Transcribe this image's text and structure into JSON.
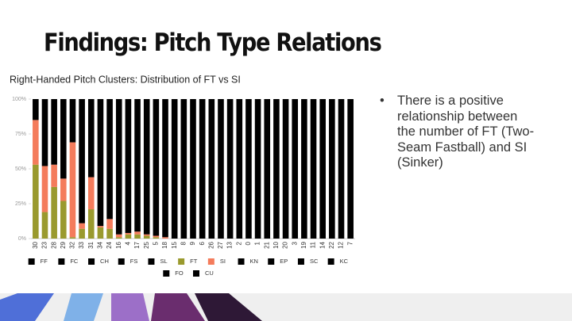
{
  "header": {
    "title": "Findings: Pitch Type Relations"
  },
  "bullets": [
    "There is a positive relationship between the number of FT (Two-Seam Fastball) and SI (Sinker)"
  ],
  "chart_data": {
    "type": "stacked-bar",
    "title": "Right-Handed Pitch Clusters: Distribution of FT vs SI",
    "categories": [
      "30",
      "23",
      "28",
      "29",
      "32",
      "33",
      "31",
      "34",
      "24",
      "16",
      "4",
      "17",
      "25",
      "5",
      "18",
      "15",
      "8",
      "9",
      "6",
      "26",
      "27",
      "13",
      "2",
      "0",
      "1",
      "21",
      "10",
      "20",
      "3",
      "19",
      "11",
      "14",
      "22",
      "12",
      "7"
    ],
    "ylim": [
      0,
      100
    ],
    "yticks": [
      {
        "value": 0,
        "label": "0%"
      },
      {
        "value": 25,
        "label": "25%"
      },
      {
        "value": 50,
        "label": "50%"
      },
      {
        "value": 75,
        "label": "75%"
      },
      {
        "value": 100,
        "label": "100%"
      }
    ],
    "legend": "bottom",
    "series": [
      {
        "name": "FF",
        "color": "#000000",
        "values": [
          15,
          48,
          47,
          57,
          31,
          89,
          56,
          91,
          86,
          97,
          96,
          95,
          97,
          98,
          99,
          100,
          100,
          100,
          100,
          100,
          100,
          100,
          100,
          100,
          100,
          100,
          100,
          100,
          100,
          100,
          100,
          100,
          100,
          100,
          100
        ]
      },
      {
        "name": "FC",
        "color": "#000000",
        "values": [
          0,
          0,
          0,
          0,
          0,
          0,
          0,
          0,
          0,
          0,
          0,
          0,
          0,
          0,
          0,
          0,
          0,
          0,
          0,
          0,
          0,
          0,
          0,
          0,
          0,
          0,
          0,
          0,
          0,
          0,
          0,
          0,
          0,
          0,
          0
        ]
      },
      {
        "name": "CH",
        "color": "#000000",
        "values": [
          0,
          0,
          0,
          0,
          0,
          0,
          0,
          0,
          0,
          0,
          0,
          0,
          0,
          0,
          0,
          0,
          0,
          0,
          0,
          0,
          0,
          0,
          0,
          0,
          0,
          0,
          0,
          0,
          0,
          0,
          0,
          0,
          0,
          0,
          0
        ]
      },
      {
        "name": "FS",
        "color": "#000000",
        "values": [
          0,
          0,
          0,
          0,
          0,
          0,
          0,
          0,
          0,
          0,
          0,
          0,
          0,
          0,
          0,
          0,
          0,
          0,
          0,
          0,
          0,
          0,
          0,
          0,
          0,
          0,
          0,
          0,
          0,
          0,
          0,
          0,
          0,
          0,
          0
        ]
      },
      {
        "name": "SL",
        "color": "#000000",
        "values": [
          0,
          0,
          0,
          0,
          0,
          0,
          0,
          0,
          0,
          0,
          0,
          0,
          0,
          0,
          0,
          0,
          0,
          0,
          0,
          0,
          0,
          0,
          0,
          0,
          0,
          0,
          0,
          0,
          0,
          0,
          0,
          0,
          0,
          0,
          0
        ]
      },
      {
        "name": "FT",
        "color": "#9a9a2e",
        "values": [
          53,
          19,
          37,
          27,
          1,
          7,
          21,
          8,
          7,
          1,
          3,
          3,
          2,
          1,
          0,
          0,
          0,
          0,
          0,
          0,
          0,
          0,
          0,
          0,
          0,
          0,
          0,
          0,
          0,
          0,
          0,
          0,
          0,
          0,
          0
        ]
      },
      {
        "name": "SI",
        "color": "#f47c5c",
        "values": [
          32,
          33,
          16,
          16,
          68,
          4,
          23,
          1,
          7,
          2,
          1,
          2,
          1,
          1,
          1,
          0,
          0,
          0,
          0,
          0,
          0,
          0,
          0,
          0,
          0,
          0,
          0,
          0,
          0,
          0,
          0,
          0,
          0,
          0,
          0
        ]
      },
      {
        "name": "KN",
        "color": "#000000",
        "values": [
          0,
          0,
          0,
          0,
          0,
          0,
          0,
          0,
          0,
          0,
          0,
          0,
          0,
          0,
          0,
          0,
          0,
          0,
          0,
          0,
          0,
          0,
          0,
          0,
          0,
          0,
          0,
          0,
          0,
          0,
          0,
          0,
          0,
          0,
          0
        ]
      },
      {
        "name": "EP",
        "color": "#000000",
        "values": [
          0,
          0,
          0,
          0,
          0,
          0,
          0,
          0,
          0,
          0,
          0,
          0,
          0,
          0,
          0,
          0,
          0,
          0,
          0,
          0,
          0,
          0,
          0,
          0,
          0,
          0,
          0,
          0,
          0,
          0,
          0,
          0,
          0,
          0,
          0
        ]
      },
      {
        "name": "SC",
        "color": "#000000",
        "values": [
          0,
          0,
          0,
          0,
          0,
          0,
          0,
          0,
          0,
          0,
          0,
          0,
          0,
          0,
          0,
          0,
          0,
          0,
          0,
          0,
          0,
          0,
          0,
          0,
          0,
          0,
          0,
          0,
          0,
          0,
          0,
          0,
          0,
          0,
          0
        ]
      },
      {
        "name": "KC",
        "color": "#000000",
        "values": [
          0,
          0,
          0,
          0,
          0,
          0,
          0,
          0,
          0,
          0,
          0,
          0,
          0,
          0,
          0,
          0,
          0,
          0,
          0,
          0,
          0,
          0,
          0,
          0,
          0,
          0,
          0,
          0,
          0,
          0,
          0,
          0,
          0,
          0,
          0
        ]
      },
      {
        "name": "FO",
        "color": "#000000",
        "values": [
          0,
          0,
          0,
          0,
          0,
          0,
          0,
          0,
          0,
          0,
          0,
          0,
          0,
          0,
          0,
          0,
          0,
          0,
          0,
          0,
          0,
          0,
          0,
          0,
          0,
          0,
          0,
          0,
          0,
          0,
          0,
          0,
          0,
          0,
          0
        ]
      },
      {
        "name": "CU",
        "color": "#000000",
        "values": [
          0,
          0,
          0,
          0,
          0,
          0,
          0,
          0,
          0,
          0,
          0,
          0,
          0,
          0,
          0,
          0,
          0,
          0,
          0,
          0,
          0,
          0,
          0,
          0,
          0,
          0,
          0,
          0,
          0,
          0,
          0,
          0,
          0,
          0,
          0
        ]
      }
    ]
  }
}
